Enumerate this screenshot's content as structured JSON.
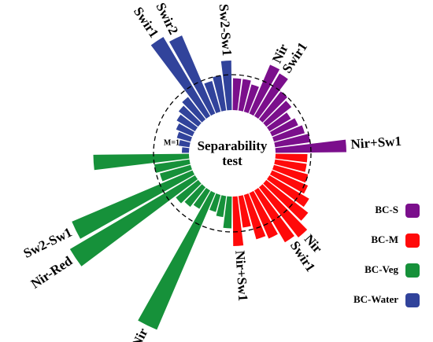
{
  "chart_data": {
    "type": "radial_bar",
    "title": "Separability test",
    "reference": {
      "value": 1,
      "label": "M=1"
    },
    "legend": "right",
    "series": [
      {
        "name": "BC-S",
        "color": "#7b0f8c",
        "categories": [
          null,
          null,
          null,
          "Nir",
          "Swir1",
          null,
          null,
          null,
          null,
          null,
          null,
          "Nir+Sw1"
        ],
        "values": [
          0.9,
          0.9,
          0.8,
          1.5,
          1.4,
          1.0,
          0.9,
          0.7,
          0.8,
          0.9,
          1.0,
          2.0
        ]
      },
      {
        "name": "BC-M",
        "color": "#ff0a0a",
        "categories": [
          null,
          null,
          null,
          null,
          null,
          null,
          "Nir",
          "Swir1",
          null,
          null,
          null,
          "Nir+Sw1"
        ],
        "values": [
          0.9,
          0.9,
          1.0,
          1.1,
          1.3,
          1.5,
          1.8,
          1.7,
          1.4,
          1.3,
          0.9,
          1.4
        ]
      },
      {
        "name": "BC-Veg",
        "color": "#16913a",
        "categories": [
          null,
          null,
          null,
          "Nir",
          null,
          null,
          null,
          "Nir-Red",
          "Sw2-Sw1",
          null,
          null,
          null
        ],
        "values": [
          0.9,
          0.6,
          0.5,
          4.2,
          0.6,
          0.7,
          0.8,
          4.1,
          3.7,
          0.9,
          1.0,
          2.7
        ]
      },
      {
        "name": "BC-Water",
        "color": "#31439b",
        "categories": [
          null,
          null,
          null,
          null,
          null,
          null,
          null,
          "Swir1",
          "Swir2",
          null,
          null,
          "Sw2-Sw1"
        ],
        "values": [
          0.2,
          0.3,
          0.4,
          0.5,
          0.6,
          0.7,
          0.8,
          2.6,
          2.4,
          0.9,
          1.0,
          1.4
        ]
      }
    ]
  }
}
